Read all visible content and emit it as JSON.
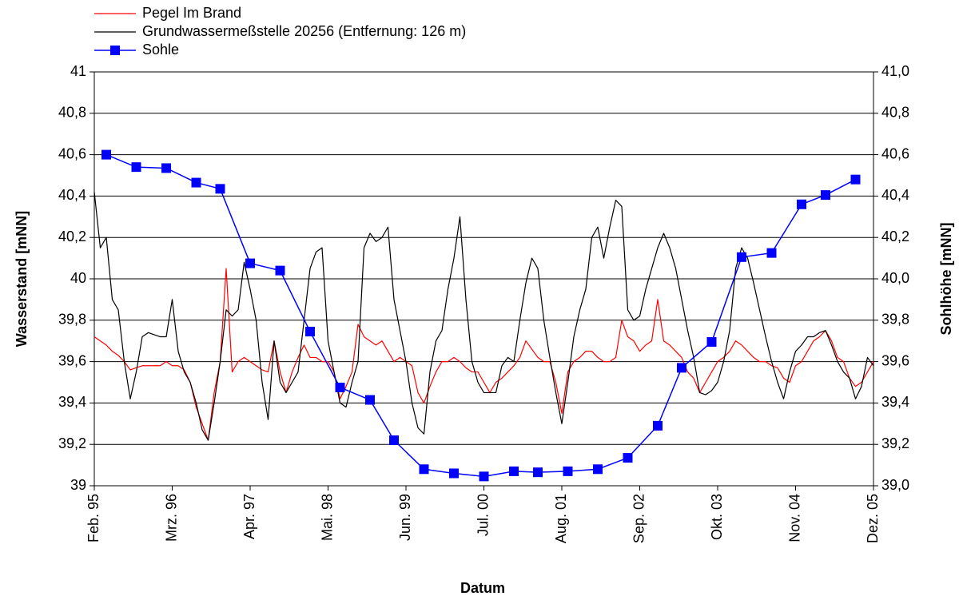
{
  "chart_data": {
    "type": "line",
    "xlabel": "Datum",
    "ylabel": "Wasserstand [mNN]",
    "y2label": "Sohlhöhe [mNN]",
    "xlim": [
      "1995-02",
      "2005-12"
    ],
    "xticks": [
      {
        "value": "1995-02",
        "label": "Feb. 95"
      },
      {
        "value": "1996-03",
        "label": "Mrz. 96"
      },
      {
        "value": "1997-04",
        "label": "Apr. 97"
      },
      {
        "value": "1998-05",
        "label": "Mai. 98"
      },
      {
        "value": "1999-06",
        "label": "Jun. 99"
      },
      {
        "value": "2000-07",
        "label": "Jul. 00"
      },
      {
        "value": "2001-08",
        "label": "Aug. 01"
      },
      {
        "value": "2002-09",
        "label": "Sep. 02"
      },
      {
        "value": "2003-10",
        "label": "Okt. 03"
      },
      {
        "value": "2004-11",
        "label": "Nov. 04"
      },
      {
        "value": "2005-12",
        "label": "Dez. 05"
      }
    ],
    "ylim": [
      39,
      41
    ],
    "yticks": [
      39,
      {
        "value": 39.2,
        "label": "39,2"
      },
      {
        "value": 39.4,
        "label": "39,4"
      },
      {
        "value": 39.6,
        "label": "39,6"
      },
      {
        "value": 39.8,
        "label": "39,8"
      },
      40,
      {
        "value": 40.2,
        "label": "40,2"
      },
      {
        "value": 40.4,
        "label": "40,4"
      },
      {
        "value": 40.6,
        "label": "40,6"
      },
      {
        "value": 40.8,
        "label": "40,8"
      },
      41
    ],
    "y2lim": [
      39,
      41
    ],
    "y2ticks": [
      {
        "value": 39,
        "label": "39,0"
      },
      {
        "value": 39.2,
        "label": "39,2"
      },
      {
        "value": 39.4,
        "label": "39,4"
      },
      {
        "value": 39.6,
        "label": "39,6"
      },
      {
        "value": 39.8,
        "label": "39,8"
      },
      {
        "value": 40,
        "label": "40,0"
      },
      {
        "value": 40.2,
        "label": "40,2"
      },
      {
        "value": 40.4,
        "label": "40,4"
      },
      {
        "value": 40.6,
        "label": "40,6"
      },
      {
        "value": 40.8,
        "label": "40,8"
      },
      {
        "value": 41,
        "label": "41,0"
      }
    ],
    "grid": true,
    "x": [
      "1995-02",
      "1995-03",
      "1995-04",
      "1995-05",
      "1995-06",
      "1995-07",
      "1995-08",
      "1995-09",
      "1995-10",
      "1995-11",
      "1995-12",
      "1996-01",
      "1996-02",
      "1996-03",
      "1996-04",
      "1996-05",
      "1996-06",
      "1996-07",
      "1996-08",
      "1996-09",
      "1996-10",
      "1996-11",
      "1996-12",
      "1997-01",
      "1997-02",
      "1997-03",
      "1997-04",
      "1997-05",
      "1997-06",
      "1997-07",
      "1997-08",
      "1997-09",
      "1997-10",
      "1997-11",
      "1997-12",
      "1998-01",
      "1998-02",
      "1998-03",
      "1998-04",
      "1998-05",
      "1998-06",
      "1998-07",
      "1998-08",
      "1998-09",
      "1998-10",
      "1998-11",
      "1998-12",
      "1999-01",
      "1999-02",
      "1999-03",
      "1999-04",
      "1999-05",
      "1999-06",
      "1999-07",
      "1999-08",
      "1999-09",
      "1999-10",
      "1999-11",
      "1999-12",
      "2000-01",
      "2000-02",
      "2000-03",
      "2000-04",
      "2000-05",
      "2000-06",
      "2000-07",
      "2000-08",
      "2000-09",
      "2000-10",
      "2000-11",
      "2000-12",
      "2001-01",
      "2001-02",
      "2001-03",
      "2001-04",
      "2001-05",
      "2001-06",
      "2001-07",
      "2001-08",
      "2001-09",
      "2001-10",
      "2001-11",
      "2001-12",
      "2002-01",
      "2002-02",
      "2002-03",
      "2002-04",
      "2002-05",
      "2002-06",
      "2002-07",
      "2002-08",
      "2002-09",
      "2002-10",
      "2002-11",
      "2002-12",
      "2003-01",
      "2003-02",
      "2003-03",
      "2003-04",
      "2003-05",
      "2003-06",
      "2003-07",
      "2003-08",
      "2003-09",
      "2003-10",
      "2003-11",
      "2003-12",
      "2004-01",
      "2004-02",
      "2004-03",
      "2004-04",
      "2004-05",
      "2004-06",
      "2004-07",
      "2004-08",
      "2004-09",
      "2004-10",
      "2004-11",
      "2004-12",
      "2005-01",
      "2005-02",
      "2005-03",
      "2005-04",
      "2005-05",
      "2005-06",
      "2005-07",
      "2005-08",
      "2005-09",
      "2005-10",
      "2005-11",
      "2005-12"
    ],
    "series": [
      {
        "name": "Pegel Im Brand",
        "color": "#ff0000",
        "values": [
          39.72,
          39.7,
          39.68,
          39.65,
          39.63,
          39.6,
          39.56,
          39.57,
          39.58,
          39.58,
          39.58,
          39.58,
          39.6,
          39.58,
          39.58,
          39.56,
          39.5,
          39.38,
          39.3,
          39.22,
          39.45,
          39.6,
          40.05,
          39.55,
          39.6,
          39.62,
          39.6,
          39.58,
          39.56,
          39.55,
          39.7,
          39.55,
          39.45,
          39.55,
          39.62,
          39.68,
          39.62,
          39.62,
          39.6,
          39.6,
          39.55,
          39.42,
          39.48,
          39.55,
          39.78,
          39.72,
          39.7,
          39.68,
          39.7,
          39.65,
          39.6,
          39.62,
          39.6,
          39.58,
          39.45,
          39.4,
          39.48,
          39.55,
          39.6,
          39.6,
          39.62,
          39.6,
          39.57,
          39.55,
          39.55,
          39.5,
          39.45,
          39.5,
          39.52,
          39.55,
          39.58,
          39.62,
          39.7,
          39.66,
          39.62,
          39.6,
          39.6,
          39.5,
          39.35,
          39.55,
          39.6,
          39.62,
          39.65,
          39.65,
          39.62,
          39.6,
          39.6,
          39.62,
          39.8,
          39.72,
          39.7,
          39.65,
          39.68,
          39.7,
          39.9,
          39.7,
          39.68,
          39.65,
          39.62,
          39.55,
          39.52,
          39.45,
          39.5,
          39.55,
          39.6,
          39.62,
          39.65,
          39.7,
          39.68,
          39.65,
          39.62,
          39.6,
          39.6,
          39.58,
          39.57,
          39.52,
          39.5,
          39.58,
          39.6,
          39.65,
          39.7,
          39.72,
          39.75,
          39.7,
          39.62,
          39.6,
          39.52,
          39.48,
          39.5,
          39.55,
          39.6
        ]
      },
      {
        "name": "Grundwassermeßstelle 20256 (Entfernung: 126 m)",
        "color": "#000000",
        "values": [
          40.42,
          40.15,
          40.2,
          39.9,
          39.85,
          39.6,
          39.42,
          39.55,
          39.72,
          39.74,
          39.73,
          39.72,
          39.72,
          39.9,
          39.65,
          39.55,
          39.5,
          39.4,
          39.27,
          39.22,
          39.4,
          39.6,
          39.85,
          39.82,
          39.85,
          40.08,
          39.95,
          39.8,
          39.5,
          39.32,
          39.7,
          39.5,
          39.45,
          39.5,
          39.55,
          39.8,
          40.05,
          40.13,
          40.15,
          39.7,
          39.55,
          39.4,
          39.38,
          39.5,
          39.6,
          40.15,
          40.22,
          40.18,
          40.2,
          40.25,
          39.9,
          39.75,
          39.6,
          39.4,
          39.28,
          39.25,
          39.55,
          39.7,
          39.75,
          39.95,
          40.1,
          40.3,
          39.9,
          39.6,
          39.5,
          39.45,
          39.45,
          39.45,
          39.58,
          39.62,
          39.6,
          39.8,
          39.98,
          40.1,
          40.05,
          39.8,
          39.62,
          39.45,
          39.3,
          39.5,
          39.72,
          39.85,
          39.95,
          40.2,
          40.25,
          40.1,
          40.25,
          40.38,
          40.35,
          39.85,
          39.8,
          39.82,
          39.95,
          40.05,
          40.15,
          40.22,
          40.15,
          40.05,
          39.9,
          39.75,
          39.62,
          39.45,
          39.44,
          39.46,
          39.5,
          39.6,
          39.75,
          40.05,
          40.15,
          40.1,
          39.98,
          39.85,
          39.72,
          39.6,
          39.5,
          39.42,
          39.55,
          39.65,
          39.68,
          39.72,
          39.72,
          39.74,
          39.75,
          39.68,
          39.6,
          39.55,
          39.52,
          39.42,
          39.48,
          39.62,
          39.58
        ]
      },
      {
        "name": "Sohle",
        "color": "#0000ff",
        "axis": "y2",
        "marker": "square",
        "x": [
          "1995-04",
          "1995-09",
          "1996-02",
          "1996-07",
          "1996-11",
          "1997-04",
          "1997-09",
          "1998-02",
          "1998-07",
          "1998-12",
          "1999-04",
          "1999-09",
          "2000-02",
          "2000-07",
          "2000-12",
          "2001-04",
          "2001-09",
          "2002-02",
          "2002-07",
          "2002-12",
          "2003-04",
          "2003-09",
          "2004-02",
          "2004-07",
          "2004-12",
          "2005-04",
          "2005-09"
        ],
        "values": [
          40.6,
          40.54,
          40.535,
          40.465,
          40.435,
          40.075,
          40.04,
          39.745,
          39.475,
          39.415,
          39.22,
          39.08,
          39.06,
          39.045,
          39.07,
          39.065,
          39.07,
          39.08,
          39.135,
          39.29,
          39.57,
          39.695,
          40.105,
          40.125,
          40.36,
          40.405,
          40.48
        ]
      }
    ]
  }
}
